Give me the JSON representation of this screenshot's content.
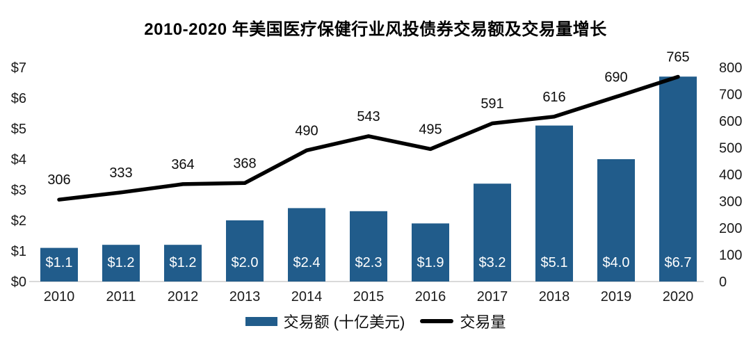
{
  "chart_data": {
    "type": "combo-bar-line",
    "title": "2010-2020 年美国医疗保健行业风投债券交易额及交易量增长",
    "categories": [
      "2010",
      "2011",
      "2012",
      "2013",
      "2014",
      "2015",
      "2016",
      "2017",
      "2018",
      "2019",
      "2020"
    ],
    "series": [
      {
        "name": "交易额 (十亿美元)",
        "type": "bar",
        "axis": "left",
        "color": "#215C8B",
        "label_color": "#ffffff",
        "values": [
          1.1,
          1.2,
          1.2,
          2.0,
          2.4,
          2.3,
          1.9,
          3.2,
          5.1,
          4.0,
          6.7
        ],
        "labels": [
          "$1.1",
          "$1.2",
          "$1.2",
          "$2.0",
          "$2.4",
          "$2.3",
          "$1.9",
          "$3.2",
          "$5.1",
          "$4.0",
          "$6.7"
        ]
      },
      {
        "name": "交易量",
        "type": "line",
        "axis": "right",
        "color": "#000000",
        "values": [
          306,
          333,
          364,
          368,
          490,
          543,
          495,
          591,
          616,
          690,
          765
        ],
        "labels": [
          "306",
          "333",
          "364",
          "368",
          "490",
          "543",
          "495",
          "591",
          "616",
          "690",
          "765"
        ]
      }
    ],
    "left_axis": {
      "min": 0,
      "max": 7,
      "ticks": [
        "$0",
        "$1",
        "$2",
        "$3",
        "$4",
        "$5",
        "$6",
        "$7"
      ]
    },
    "right_axis": {
      "min": 0,
      "max": 800,
      "ticks": [
        "0",
        "100",
        "200",
        "300",
        "400",
        "500",
        "600",
        "700",
        "800"
      ]
    },
    "legend": {
      "position": "bottom",
      "bar_label": "交易额 (十亿美元)",
      "line_label": "交易量"
    },
    "grid": false,
    "baseline_color": "#D9D9D9",
    "background": "#ffffff"
  }
}
